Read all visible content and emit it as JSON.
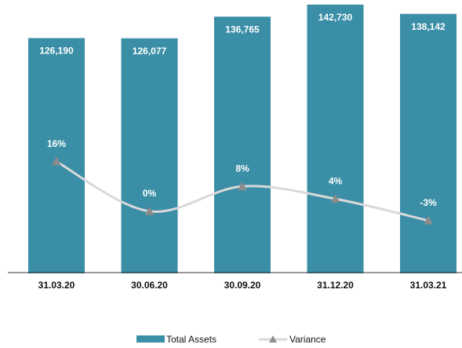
{
  "chart_data": {
    "type": "bar-line",
    "categories": [
      "31.03.20",
      "30.06.20",
      "30.09.20",
      "31.12.20",
      "31.03.21"
    ],
    "series": [
      {
        "name": "Total Assets",
        "type": "bar",
        "color": "#3a8ea6",
        "values": [
          126190,
          126077,
          136765,
          142730,
          138142
        ],
        "value_labels": [
          "126,190",
          "126,077",
          "136,765",
          "142,730",
          "138,142"
        ]
      },
      {
        "name": "Variance",
        "type": "line",
        "axis": "y2",
        "color": "#d9d9d9",
        "marker_color": "#8c8c8c",
        "values": [
          16,
          0,
          8,
          4,
          -3
        ],
        "value_labels": [
          "16%",
          "0%",
          "8%",
          "4%",
          "-3%"
        ]
      }
    ],
    "ylim": [
      10000,
      145000
    ],
    "y2lim": [
      -20,
      68
    ],
    "legend": "bottom"
  }
}
